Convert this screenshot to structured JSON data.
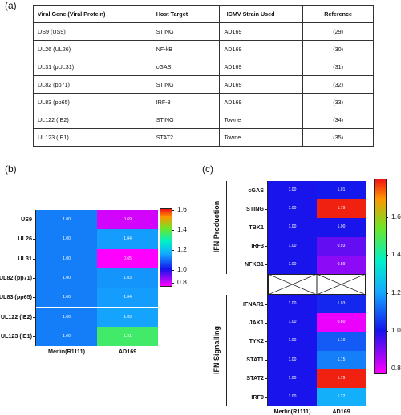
{
  "panel_a": {
    "label": "(a)",
    "headers": [
      "Viral Gene (Viral Protein)",
      "Host Target",
      "HCMV Strain Used",
      "Reference"
    ],
    "rows": [
      [
        "US9 (US9)",
        "STING",
        "AD169",
        "(29)"
      ],
      [
        "UL26 (UL26)",
        "NF-kB",
        "AD169",
        "(30)"
      ],
      [
        "UL31 (pUL31)",
        "cGAS",
        "AD169",
        "(31)"
      ],
      [
        "UL82 (pp71)",
        "STING",
        "AD169",
        "(32)"
      ],
      [
        "UL83 (pp65)",
        "IRF-3",
        "AD169",
        "(33)"
      ],
      [
        "UL122 (IE2)",
        "STING",
        "Towne",
        "(34)"
      ],
      [
        "UL123 (IE1)",
        "STAT2",
        "Towne",
        "(35)"
      ]
    ]
  },
  "chart_data": [
    {
      "type": "heatmap",
      "panel_label": "(b)",
      "columns": [
        "Merlin(R1111)",
        "AD169"
      ],
      "rows": [
        "US9",
        "UL26",
        "UL31",
        "UL82 (pp71)",
        "UL83 (pp65)",
        "UL122 (IE2)",
        "UL123 (IE1)"
      ],
      "values": [
        [
          1.0,
          0.69
        ],
        [
          1.0,
          1.04
        ],
        [
          1.0,
          0.65
        ],
        [
          1.0,
          1.03
        ],
        [
          1.0,
          1.04
        ],
        [
          1.0,
          1.05
        ],
        [
          1.0,
          1.31
        ]
      ],
      "value_labels": [
        [
          "1.00",
          "0.69"
        ],
        [
          "1.00",
          "1.04"
        ],
        [
          "1.00",
          "0.65"
        ],
        [
          "1.00",
          "1.03"
        ],
        [
          "1.00",
          "1.04"
        ],
        [
          "1.00",
          "1.05"
        ],
        [
          "1.00",
          "1.31"
        ]
      ],
      "colorbar": {
        "ticks": [
          "1.6",
          "1.4",
          "1.2",
          "1.0",
          "0.8"
        ],
        "range": [
          0.65,
          1.62
        ]
      }
    },
    {
      "type": "heatmap",
      "panel_label": "(c)",
      "columns": [
        "Merlin(R1111)",
        "AD169"
      ],
      "groups": [
        {
          "name": "IFN Production",
          "rows": [
            "cGAS",
            "STING",
            "TBK1",
            "IRF3",
            "NFKB1"
          ],
          "values": [
            [
              1.0,
              1.01
            ],
            [
              1.0,
              1.79
            ],
            [
              1.0,
              1.0
            ],
            [
              1.0,
              0.93
            ],
            [
              1.0,
              0.89
            ]
          ],
          "value_labels": [
            [
              "1.00",
              "1.01"
            ],
            [
              "1.00",
              "1.79"
            ],
            [
              "1.00",
              "1.00"
            ],
            [
              "1.00",
              "0.93"
            ],
            [
              "1.00",
              "0.89"
            ]
          ]
        },
        {
          "name": "IFN Signalling",
          "rows": [
            "IFNAR1",
            "JAK1",
            "TYK2",
            "STAT1",
            "STAT2",
            "IRF9"
          ],
          "values": [
            [
              1.0,
              1.03
            ],
            [
              1.0,
              0.8
            ],
            [
              1.0,
              1.1
            ],
            [
              1.0,
              1.15
            ],
            [
              1.0,
              1.79
            ],
            [
              1.0,
              1.22
            ]
          ],
          "value_labels": [
            [
              "1.00",
              "1.03"
            ],
            [
              "1.00",
              "0.80"
            ],
            [
              "1.00",
              "1.10"
            ],
            [
              "1.00",
              "1.15"
            ],
            [
              "1.00",
              "1.79"
            ],
            [
              "1.00",
              "1.22"
            ]
          ]
        }
      ],
      "colorbar": {
        "ticks": [
          "1.6",
          "1.4",
          "1.2",
          "1.0",
          "0.8"
        ],
        "range": [
          0.78,
          1.8
        ]
      }
    }
  ]
}
